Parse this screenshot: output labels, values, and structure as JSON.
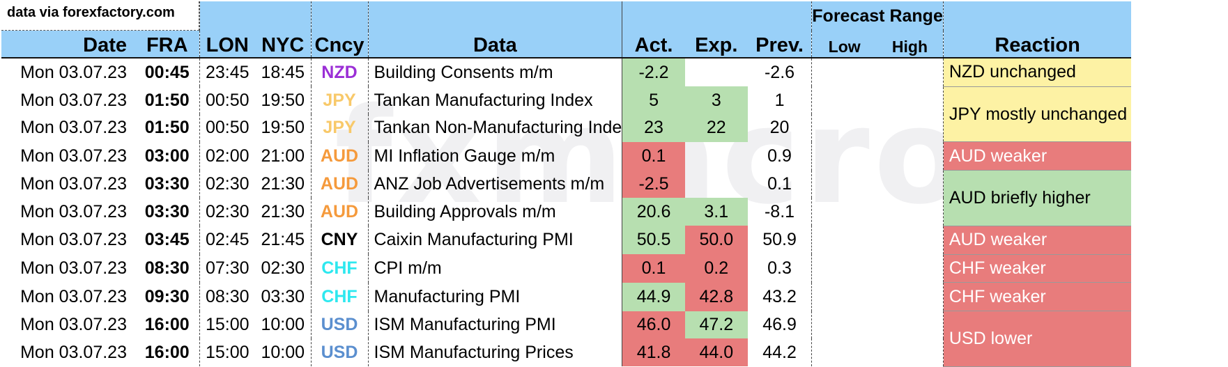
{
  "source_note": "data via forexfactory.com",
  "headers": {
    "date": "Date",
    "fra": "FRA",
    "lon": "LON",
    "nyc": "NYC",
    "cncy": "Cncy",
    "data": "Data",
    "act": "Act.",
    "exp": "Exp.",
    "prev": "Prev.",
    "forecast_range": "Forecast Range",
    "low": "Low",
    "high": "High",
    "reaction": "Reaction"
  },
  "currency_colors": {
    "NZD": "#9b2fd6",
    "JPY": "#f8c96a",
    "AUD": "#f59a3c",
    "CNY": "#000000",
    "CHF": "#2ee8ef",
    "USD": "#5b8fcf"
  },
  "rows": [
    {
      "date": "Mon 03.07.23",
      "fra": "00:45",
      "lon": "23:45",
      "nyc": "18:45",
      "cncy": "NZD",
      "data": "Building Consents m/m",
      "act": "-2.2",
      "act_color": "green",
      "exp": "",
      "exp_color": "",
      "prev": "-2.6"
    },
    {
      "date": "Mon 03.07.23",
      "fra": "01:50",
      "lon": "00:50",
      "nyc": "19:50",
      "cncy": "JPY",
      "data": "Tankan Manufacturing Index",
      "act": "5",
      "act_color": "green",
      "exp": "3",
      "exp_color": "green",
      "prev": "1"
    },
    {
      "date": "Mon 03.07.23",
      "fra": "01:50",
      "lon": "00:50",
      "nyc": "19:50",
      "cncy": "JPY",
      "data": "Tankan Non-Manufacturing Inde",
      "act": "23",
      "act_color": "green",
      "exp": "22",
      "exp_color": "green",
      "prev": "20"
    },
    {
      "date": "Mon 03.07.23",
      "fra": "03:00",
      "lon": "02:00",
      "nyc": "21:00",
      "cncy": "AUD",
      "data": "MI Inflation Gauge m/m",
      "act": "0.1",
      "act_color": "red",
      "exp": "",
      "exp_color": "",
      "prev": "0.9"
    },
    {
      "date": "Mon 03.07.23",
      "fra": "03:30",
      "lon": "02:30",
      "nyc": "21:30",
      "cncy": "AUD",
      "data": "ANZ Job Advertisements m/m",
      "act": "-2.5",
      "act_color": "red",
      "exp": "",
      "exp_color": "",
      "prev": "0.1"
    },
    {
      "date": "Mon 03.07.23",
      "fra": "03:30",
      "lon": "02:30",
      "nyc": "21:30",
      "cncy": "AUD",
      "data": "Building Approvals m/m",
      "act": "20.6",
      "act_color": "green",
      "exp": "3.1",
      "exp_color": "green",
      "prev": "-8.1"
    },
    {
      "date": "Mon 03.07.23",
      "fra": "03:45",
      "lon": "02:45",
      "nyc": "21:45",
      "cncy": "CNY",
      "data": "Caixin Manufacturing PMI",
      "act": "50.5",
      "act_color": "green",
      "exp": "50.0",
      "exp_color": "red",
      "prev": "50.9"
    },
    {
      "date": "Mon 03.07.23",
      "fra": "08:30",
      "lon": "07:30",
      "nyc": "02:30",
      "cncy": "CHF",
      "data": "CPI m/m",
      "act": "0.1",
      "act_color": "red",
      "exp": "0.2",
      "exp_color": "red",
      "prev": "0.3"
    },
    {
      "date": "Mon 03.07.23",
      "fra": "09:30",
      "lon": "08:30",
      "nyc": "03:30",
      "cncy": "CHF",
      "data": "Manufacturing PMI",
      "act": "44.9",
      "act_color": "green",
      "exp": "42.8",
      "exp_color": "red",
      "prev": "43.2"
    },
    {
      "date": "Mon 03.07.23",
      "fra": "16:00",
      "lon": "15:00",
      "nyc": "10:00",
      "cncy": "USD",
      "data": "ISM Manufacturing PMI",
      "act": "46.0",
      "act_color": "red",
      "exp": "47.2",
      "exp_color": "green",
      "prev": "46.9"
    },
    {
      "date": "Mon 03.07.23",
      "fra": "16:00",
      "lon": "15:00",
      "nyc": "10:00",
      "cncy": "USD",
      "data": "ISM Manufacturing Prices",
      "act": "41.8",
      "act_color": "red",
      "exp": "44.0",
      "exp_color": "red",
      "prev": "44.2"
    }
  ],
  "reactions": [
    {
      "text": "NZD unchanged",
      "color": "yellow",
      "rowspan": 1
    },
    {
      "text": "JPY mostly unchanged",
      "color": "yellow",
      "rowspan": 2
    },
    {
      "text": "AUD weaker",
      "color": "red",
      "rowspan": 1
    },
    {
      "text": "AUD briefly higher",
      "color": "green",
      "rowspan": 2
    },
    {
      "text": "AUD weaker",
      "color": "red",
      "rowspan": 1
    },
    {
      "text": "CHF weaker",
      "color": "red",
      "rowspan": 1
    },
    {
      "text": "CHF weaker",
      "color": "red",
      "rowspan": 1
    },
    {
      "text": "USD lower",
      "color": "red",
      "rowspan": 2
    }
  ],
  "watermark": "fxmacro"
}
